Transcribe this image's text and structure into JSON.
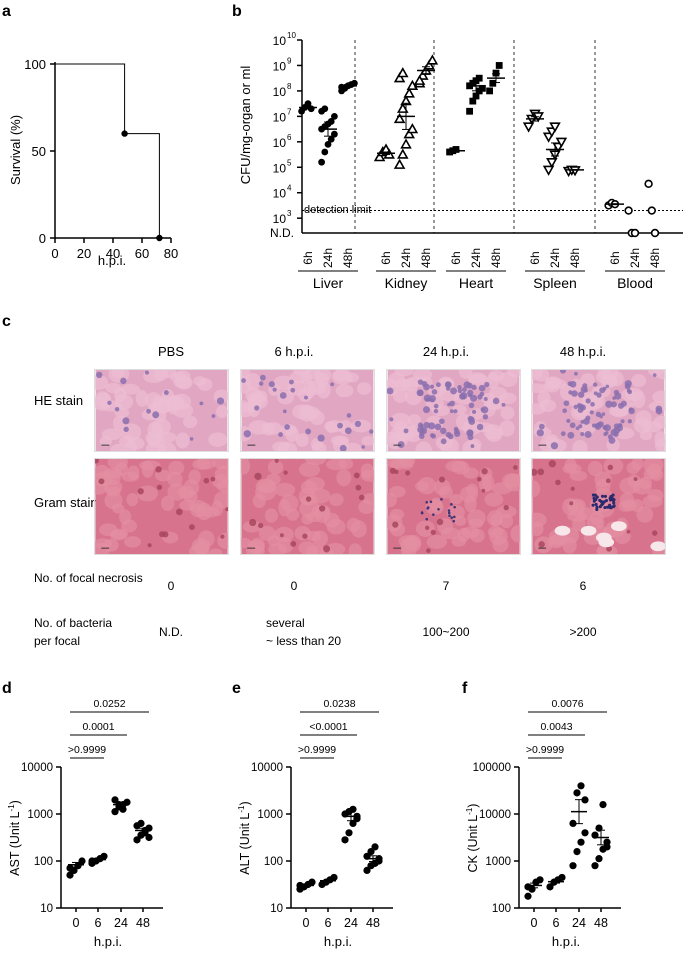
{
  "panel_labels": {
    "a": "a",
    "b": "b",
    "c": "c",
    "d": "d",
    "e": "e",
    "f": "f"
  },
  "panel_a": {
    "chart_data": {
      "type": "line",
      "title": "",
      "ylabel": "Survival (%)",
      "xlabel": "h.p.i.",
      "xlim": [
        0,
        80
      ],
      "ylim": [
        0,
        100
      ],
      "x_ticks": [
        "0",
        "20",
        "40",
        "60",
        "80"
      ],
      "y_ticks": [
        "0",
        "50",
        "100"
      ],
      "series": [
        {
          "name": "survival",
          "x": [
            0,
            48,
            48,
            72,
            72
          ],
          "y": [
            100,
            100,
            60,
            60,
            0
          ],
          "markers": [
            [
              48,
              60
            ],
            [
              72,
              0
            ]
          ]
        }
      ]
    }
  },
  "panel_b": {
    "chart_data": {
      "type": "scatter",
      "ylabel": "CFU/mg-organ or ml",
      "y_ticks": [
        "10",
        "10",
        "10",
        "10",
        "10",
        "10",
        "10",
        "10",
        "N.D."
      ],
      "y_exps": [
        "3",
        "4",
        "5",
        "6",
        "7",
        "8",
        "9",
        "10"
      ],
      "y_exp_values": [
        3,
        4,
        5,
        6,
        7,
        8,
        9,
        10
      ],
      "detection_limit_label": "detection limit",
      "detection_limit_log": 3.3,
      "groups": [
        {
          "name": "Liver",
          "marker": "circle-filled",
          "times": [
            "6h",
            "24h",
            "48h"
          ],
          "points": [
            [
              7.2,
              7.35,
              7.5,
              7.3
            ],
            [
              5.2,
              5.6,
              5.9,
              6.1,
              6.3,
              6.5,
              6.6,
              6.7,
              6.8,
              7.0,
              7.2,
              7.3
            ],
            [
              8.0,
              8.1,
              8.2,
              8.25,
              8.3,
              8.15
            ]
          ],
          "means": [
            7.35,
            6.5,
            8.2
          ]
        },
        {
          "name": "Kidney",
          "marker": "triangle-up-open",
          "times": [
            "6h",
            "24h",
            "48h"
          ],
          "points": [
            [
              5.4,
              5.6,
              5.7,
              5.5
            ],
            [
              5.1,
              5.5,
              5.9,
              6.3,
              6.5,
              6.9,
              7.3,
              7.6,
              7.9,
              8.2,
              8.5,
              8.7
            ],
            [
              8.3,
              8.6,
              8.8,
              9.0,
              9.2,
              8.4
            ]
          ],
          "means": [
            5.55,
            7.0,
            8.8
          ]
        },
        {
          "name": "Heart",
          "marker": "square-filled",
          "times": [
            "6h",
            "24h",
            "48h"
          ],
          "points": [
            [
              5.6,
              5.65,
              5.7
            ],
            [
              7.2,
              7.6,
              7.8,
              8.0,
              8.1,
              8.2,
              8.3,
              8.4,
              8.5
            ],
            [
              8.0,
              8.3,
              8.7,
              9.0
            ]
          ],
          "means": [
            5.65,
            8.2,
            8.5
          ]
        },
        {
          "name": "Spleen",
          "marker": "triangle-down-open",
          "times": [
            "6h",
            "24h",
            "48h"
          ],
          "points": [
            [
              6.6,
              6.9,
              7.1,
              7.0
            ],
            [
              4.9,
              5.2,
              5.5,
              5.8,
              6.0,
              6.2,
              6.4,
              6.6
            ],
            [
              4.85,
              4.9,
              4.88
            ]
          ],
          "means": [
            6.9,
            5.7,
            4.9
          ]
        },
        {
          "name": "Blood",
          "marker": "circle-open",
          "times": [
            "6h",
            "24h",
            "48h"
          ],
          "points": [
            [
              3.5,
              3.6,
              3.55
            ],
            [
              3.3,
              "N.D.",
              "N.D."
            ],
            [
              4.35,
              3.3,
              "N.D."
            ]
          ],
          "means": [
            3.55,
            null,
            null
          ]
        }
      ]
    }
  },
  "panel_c": {
    "columns": [
      "PBS",
      "6 h.p.i.",
      "24 h.p.i.",
      "48 h.p.i."
    ],
    "rows": [
      "HE stain",
      "Gram stain"
    ],
    "focal_necrosis_label": "No. of focal necrosis",
    "focal_necrosis_values": [
      "0",
      "0",
      "7",
      "6"
    ],
    "bacteria_label_1": "No. of bacteria",
    "bacteria_label_2": "per focal",
    "bacteria_values": [
      "N.D.",
      "several",
      "100~200",
      ">200"
    ],
    "bacteria_value_2_line2": "~ less than 20"
  },
  "panel_d": {
    "chart_data": {
      "type": "scatter",
      "ylabel": "AST",
      "ylabel_unit": "(Unit L",
      "ylabel_exp": "-1",
      "ylabel_close": ")",
      "xlabel": "h.p.i.",
      "y_ticks": [
        "10",
        "100",
        "1000",
        "10000"
      ],
      "y_log_range": [
        1,
        4
      ],
      "categories": [
        "0",
        "6",
        "24",
        "48"
      ],
      "points": [
        [
          1.7,
          1.8,
          1.9,
          2.0,
          1.85
        ],
        [
          1.95,
          2.0,
          2.05,
          2.1,
          2.0
        ],
        [
          3.05,
          3.15,
          3.2,
          3.25,
          3.3,
          3.2,
          3.1
        ],
        [
          2.45,
          2.55,
          2.6,
          2.7,
          2.75,
          2.8,
          2.65,
          2.5
        ]
      ],
      "means": [
        1.92,
        2.03,
        3.2,
        2.65
      ],
      "sig": [
        {
          "pair": [
            0,
            6
          ],
          "p": ">0.9999"
        },
        {
          "pair": [
            0,
            24
          ],
          "p": "0.0001"
        },
        {
          "pair": [
            0,
            48
          ],
          "p": "0.0252"
        }
      ]
    }
  },
  "panel_e": {
    "chart_data": {
      "type": "scatter",
      "ylabel": "ALT",
      "ylabel_unit": "(Unit L",
      "ylabel_exp": "-1",
      "ylabel_close": ")",
      "xlabel": "h.p.i.",
      "y_ticks": [
        "10",
        "100",
        "1000",
        "10000"
      ],
      "y_log_range": [
        1,
        4
      ],
      "categories": [
        "0",
        "6",
        "24",
        "48"
      ],
      "points": [
        [
          1.4,
          1.45,
          1.5,
          1.55,
          1.48
        ],
        [
          1.5,
          1.55,
          1.6,
          1.65
        ],
        [
          2.45,
          2.6,
          2.8,
          2.95,
          3.0,
          3.05,
          3.1,
          2.9
        ],
        [
          1.8,
          1.9,
          1.95,
          2.0,
          2.1,
          2.2,
          2.3,
          2.05
        ]
      ],
      "means": [
        1.48,
        1.58,
        2.95,
        2.05
      ],
      "sig": [
        {
          "pair": [
            0,
            6
          ],
          "p": ">0.9999"
        },
        {
          "pair": [
            0,
            24
          ],
          "p": "<0.0001"
        },
        {
          "pair": [
            0,
            48
          ],
          "p": "0.0238"
        }
      ]
    }
  },
  "panel_f": {
    "chart_data": {
      "type": "scatter",
      "ylabel": "CK",
      "ylabel_unit": "(Unit L",
      "ylabel_exp": "-1",
      "ylabel_close": ")",
      "xlabel": "h.p.i.",
      "y_ticks": [
        "100",
        "1000",
        "10000",
        "100000"
      ],
      "y_log_range": [
        2,
        5
      ],
      "categories": [
        "0",
        "6",
        "24",
        "48"
      ],
      "points": [
        [
          2.25,
          2.4,
          2.55,
          2.6,
          2.45
        ],
        [
          2.45,
          2.55,
          2.6,
          2.65
        ],
        [
          2.9,
          3.2,
          3.4,
          3.6,
          3.8,
          4.45,
          4.6,
          4.3
        ],
        [
          2.9,
          3.05,
          3.25,
          3.4,
          3.55,
          3.7,
          4.2,
          3.3
        ]
      ],
      "means": [
        2.48,
        2.56,
        4.05,
        3.5
      ],
      "sig": [
        {
          "pair": [
            0,
            6
          ],
          "p": ">0.9999"
        },
        {
          "pair": [
            0,
            24
          ],
          "p": "0.0043"
        },
        {
          "pair": [
            0,
            48
          ],
          "p": "0.0076"
        }
      ]
    }
  }
}
